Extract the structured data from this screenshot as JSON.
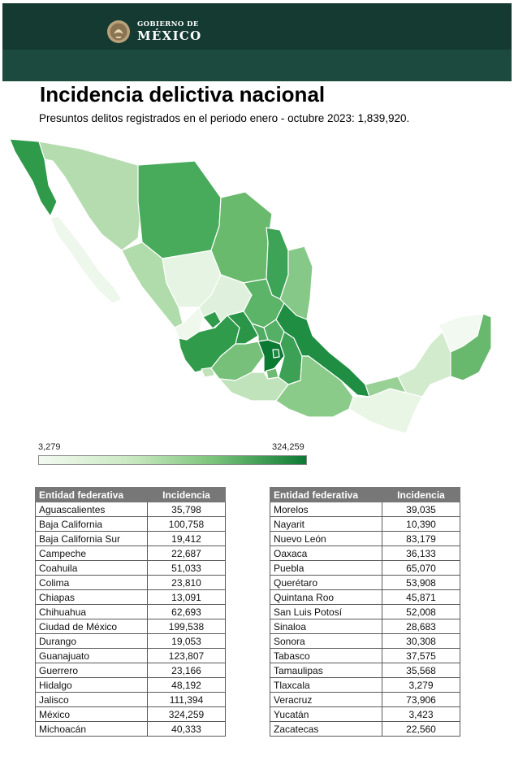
{
  "header": {
    "logo_top": "GOBIERNO DE",
    "logo_bottom": "MÉXICO",
    "seal_icon": "eagle-seal-icon"
  },
  "title": "Incidencia delictiva nacional",
  "subtitle": "Presuntos delitos registrados en el periodo enero - octubre 2023: 1,839,920.",
  "legend": {
    "min_label": "3,279",
    "max_label": "324,259",
    "color_low": "#f3faf1",
    "color_high": "#0d7a34"
  },
  "table": {
    "col_entity": "Entidad federativa",
    "col_incidence": "Incidencia",
    "left_rows": [
      {
        "entity": "Aguascalientes",
        "value": "35,798"
      },
      {
        "entity": "Baja California",
        "value": "100,758"
      },
      {
        "entity": "Baja California Sur",
        "value": "19,412"
      },
      {
        "entity": "Campeche",
        "value": "22,687"
      },
      {
        "entity": "Coahuila",
        "value": "51,033"
      },
      {
        "entity": "Colima",
        "value": "23,810"
      },
      {
        "entity": "Chiapas",
        "value": "13,091"
      },
      {
        "entity": "Chihuahua",
        "value": "62,693"
      },
      {
        "entity": "Ciudad de México",
        "value": "199,538"
      },
      {
        "entity": "Durango",
        "value": "19,053"
      },
      {
        "entity": "Guanajuato",
        "value": "123,807"
      },
      {
        "entity": "Guerrero",
        "value": "23,166"
      },
      {
        "entity": "Hidalgo",
        "value": "48,192"
      },
      {
        "entity": "Jalisco",
        "value": "111,394"
      },
      {
        "entity": "México",
        "value": "324,259"
      },
      {
        "entity": "Michoacán",
        "value": "40,333"
      }
    ],
    "right_rows": [
      {
        "entity": "Morelos",
        "value": "39,035"
      },
      {
        "entity": "Nayarit",
        "value": "10,390"
      },
      {
        "entity": "Nuevo León",
        "value": "83,179"
      },
      {
        "entity": "Oaxaca",
        "value": "36,133"
      },
      {
        "entity": "Puebla",
        "value": "65,070"
      },
      {
        "entity": "Querétaro",
        "value": "53,908"
      },
      {
        "entity": "Quintana Roo",
        "value": "45,871"
      },
      {
        "entity": "San Luis Potosí",
        "value": "52,008"
      },
      {
        "entity": "Sinaloa",
        "value": "28,683"
      },
      {
        "entity": "Sonora",
        "value": "30,308"
      },
      {
        "entity": "Tabasco",
        "value": "37,575"
      },
      {
        "entity": "Tamaulipas",
        "value": "35,568"
      },
      {
        "entity": "Tlaxcala",
        "value": "3,279"
      },
      {
        "entity": "Veracruz",
        "value": "73,906"
      },
      {
        "entity": "Yucatán",
        "value": "3,423"
      },
      {
        "entity": "Zacatecas",
        "value": "22,560"
      }
    ]
  }
}
